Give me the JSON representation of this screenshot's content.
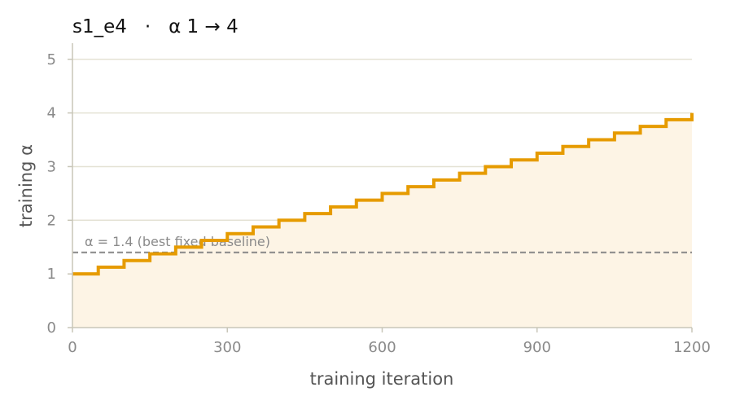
{
  "chart_data": {
    "type": "line",
    "title": "s1_e4   ·   α 1 → 4",
    "xlabel": "training iteration",
    "ylabel": "training α",
    "xlim": [
      0,
      1200
    ],
    "ylim": [
      0,
      5.3
    ],
    "xticks": [
      0,
      300,
      600,
      900,
      1200
    ],
    "xtick_labels": [
      "0",
      "300",
      "600",
      "900",
      "1200"
    ],
    "yticks": [
      0,
      1,
      2,
      3,
      4,
      5
    ],
    "ytick_labels": [
      "0",
      "1",
      "2",
      "3",
      "4",
      "5"
    ],
    "grid": "horizontal",
    "series": [
      {
        "step": "post",
        "color": "#E69B00",
        "fill": "#FDF4E5",
        "x": [
          0,
          50,
          100,
          150,
          200,
          250,
          300,
          350,
          400,
          450,
          500,
          550,
          600,
          650,
          700,
          750,
          800,
          850,
          900,
          950,
          1000,
          1050,
          1100,
          1150,
          1200
        ],
        "y": [
          1.0,
          1.125,
          1.25,
          1.375,
          1.5,
          1.625,
          1.75,
          1.875,
          2.0,
          2.125,
          2.25,
          2.375,
          2.5,
          2.625,
          2.75,
          2.875,
          3.0,
          3.125,
          3.25,
          3.375,
          3.5,
          3.625,
          3.75,
          3.875,
          4.0
        ]
      }
    ],
    "reference_line": {
      "y": 1.4,
      "label": "α = 1.4 (best fixed baseline)",
      "color": "#888888",
      "style": "dashed"
    }
  }
}
